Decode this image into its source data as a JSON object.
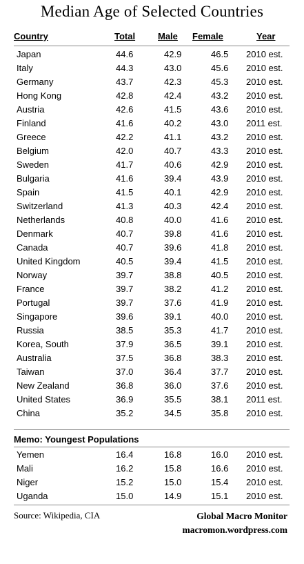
{
  "title": "Median Age of Selected  Countries",
  "headers": {
    "country": "Country",
    "total": "Total",
    "male": "Male",
    "female": "Female",
    "year": "Year"
  },
  "rows": [
    {
      "country": "Japan",
      "total": "44.6",
      "male": "42.9",
      "female": "46.5",
      "year": "2010 est."
    },
    {
      "country": "Italy",
      "total": "44.3",
      "male": "43.0",
      "female": "45.6",
      "year": "2010 est."
    },
    {
      "country": "Germany",
      "total": "43.7",
      "male": "42.3",
      "female": "45.3",
      "year": "2010 est."
    },
    {
      "country": "Hong Kong",
      "total": "42.8",
      "male": "42.4",
      "female": "43.2",
      "year": "2010 est."
    },
    {
      "country": "Austria",
      "total": "42.6",
      "male": "41.5",
      "female": "43.6",
      "year": "2010 est."
    },
    {
      "country": "Finland",
      "total": "41.6",
      "male": "40.2",
      "female": "43.0",
      "year": "2011 est."
    },
    {
      "country": "Greece",
      "total": "42.2",
      "male": "41.1",
      "female": "43.2",
      "year": "2010 est."
    },
    {
      "country": "Belgium",
      "total": "42.0",
      "male": "40.7",
      "female": "43.3",
      "year": "2010 est."
    },
    {
      "country": "Sweden",
      "total": "41.7",
      "male": "40.6",
      "female": "42.9",
      "year": "2010 est."
    },
    {
      "country": "Bulgaria",
      "total": "41.6",
      "male": "39.4",
      "female": "43.9",
      "year": "2010 est."
    },
    {
      "country": "Spain",
      "total": "41.5",
      "male": "40.1",
      "female": "42.9",
      "year": "2010 est."
    },
    {
      "country": "Switzerland",
      "total": "41.3",
      "male": "40.3",
      "female": "42.4",
      "year": "2010 est."
    },
    {
      "country": "Netherlands",
      "total": "40.8",
      "male": "40.0",
      "female": "41.6",
      "year": "2010 est."
    },
    {
      "country": "Denmark",
      "total": "40.7",
      "male": "39.8",
      "female": "41.6",
      "year": "2010 est."
    },
    {
      "country": "Canada",
      "total": "40.7",
      "male": "39.6",
      "female": "41.8",
      "year": "2010 est."
    },
    {
      "country": "United Kingdom",
      "total": "40.5",
      "male": "39.4",
      "female": "41.5",
      "year": "2010 est."
    },
    {
      "country": "Norway",
      "total": "39.7",
      "male": "38.8",
      "female": "40.5",
      "year": "2010 est."
    },
    {
      "country": "France",
      "total": "39.7",
      "male": "38.2",
      "female": "41.2",
      "year": "2010 est."
    },
    {
      "country": "Portugal",
      "total": "39.7",
      "male": "37.6",
      "female": "41.9",
      "year": "2010 est."
    },
    {
      "country": "Singapore",
      "total": "39.6",
      "male": "39.1",
      "female": "40.0",
      "year": "2010 est."
    },
    {
      "country": "Russia",
      "total": "38.5",
      "male": "35.3",
      "female": "41.7",
      "year": "2010 est."
    },
    {
      "country": "Korea, South",
      "total": "37.9",
      "male": "36.5",
      "female": "39.1",
      "year": "2010 est."
    },
    {
      "country": "Australia",
      "total": "37.5",
      "male": "36.8",
      "female": "38.3",
      "year": "2010 est."
    },
    {
      "country": "Taiwan",
      "total": "37.0",
      "male": "36.4",
      "female": "37.7",
      "year": "2010 est."
    },
    {
      "country": "New Zealand",
      "total": "36.8",
      "male": "36.0",
      "female": "37.6",
      "year": "2010 est."
    },
    {
      "country": "United States",
      "total": "36.9",
      "male": "35.5",
      "female": "38.1",
      "year": "2011 est."
    },
    {
      "country": "China",
      "total": "35.2",
      "male": "34.5",
      "female": "35.8",
      "year": "2010 est."
    }
  ],
  "memo": {
    "label": "Memo:  Youngest Populations",
    "rows": [
      {
        "country": "Yemen",
        "total": "16.4",
        "male": "16.8",
        "female": "16.0",
        "year": "2010 est."
      },
      {
        "country": "Mali",
        "total": "16.2",
        "male": "15.8",
        "female": "16.6",
        "year": "2010 est."
      },
      {
        "country": "Niger",
        "total": "15.2",
        "male": "15.0",
        "female": "15.4",
        "year": "2010 est."
      },
      {
        "country": "Uganda",
        "total": "15.0",
        "male": "14.9",
        "female": "15.1",
        "year": "2010 est."
      }
    ]
  },
  "source": "Source:  Wikipedia, CIA",
  "brand": {
    "name": "Global Macro Monitor",
    "site": "macromon.wordpress.com"
  }
}
